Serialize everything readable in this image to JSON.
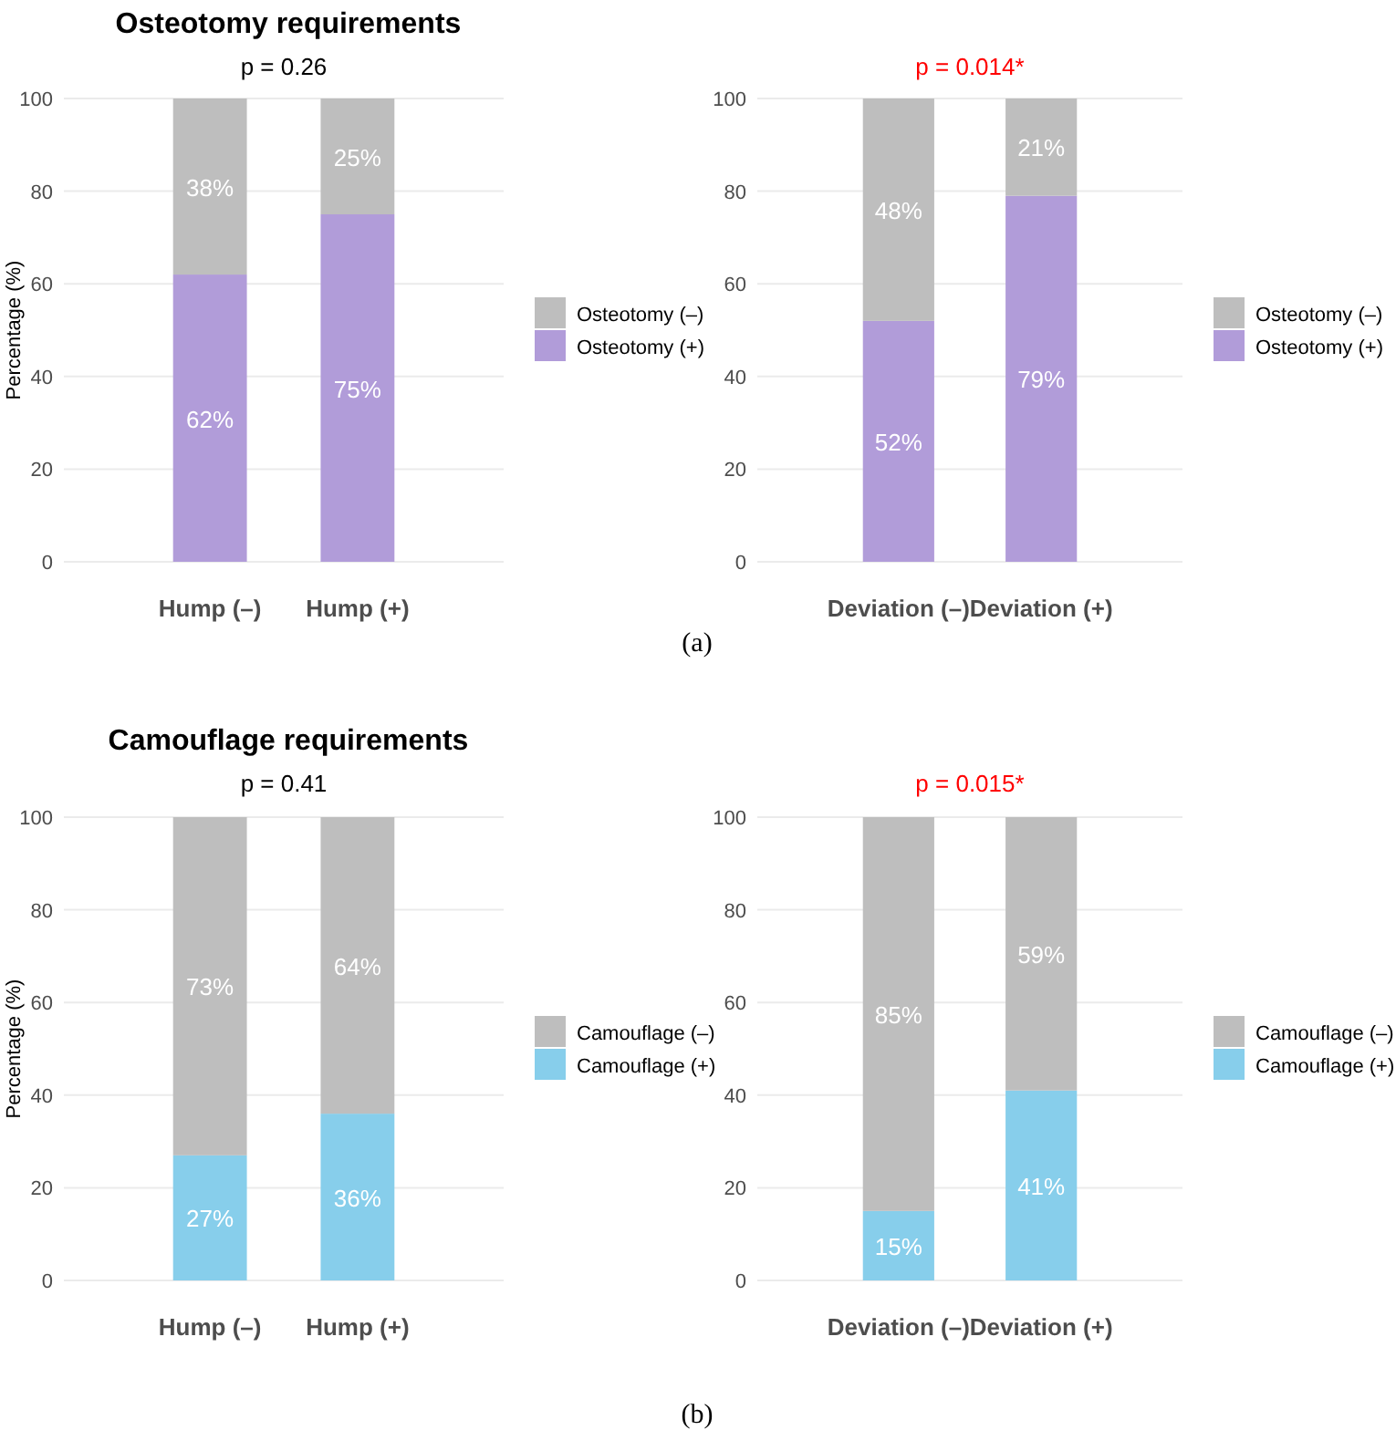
{
  "chart_data": [
    {
      "type": "bar",
      "title": "Osteotomy requirements",
      "subtitle": "p = 0.26",
      "ylabel": "Percentage (%)",
      "annotations": [
        "(a)"
      ],
      "categories": [
        "Hump (–)",
        "Hump (+)"
      ],
      "stacked": true,
      "ylim": [
        0,
        100
      ],
      "yticks": [
        0,
        20,
        40,
        60,
        80,
        100
      ],
      "grid": "y",
      "legend": "right",
      "series": [
        {
          "name": "Osteotomy (+)",
          "color": "#b19cd9",
          "values": [
            62,
            75
          ],
          "value_labels": [
            "62%",
            "75%"
          ]
        },
        {
          "name": "Osteotomy (–)",
          "color": "#bebebe",
          "values": [
            38,
            25
          ],
          "value_labels": [
            "38%",
            "25%"
          ]
        }
      ]
    },
    {
      "type": "bar",
      "subtitle": "p = 0.014*",
      "categories": [
        "Deviation (–)",
        "Deviation (+)"
      ],
      "stacked": true,
      "ylim": [
        0,
        100
      ],
      "yticks": [
        0,
        20,
        40,
        60,
        80,
        100
      ],
      "grid": "y",
      "legend": "right",
      "series": [
        {
          "name": "Osteotomy (+)",
          "color": "#b19cd9",
          "values": [
            52,
            79
          ],
          "value_labels": [
            "52%",
            "79%"
          ]
        },
        {
          "name": "Osteotomy (–)",
          "color": "#bebebe",
          "values": [
            48,
            21
          ],
          "value_labels": [
            "48%",
            "21%"
          ]
        }
      ]
    },
    {
      "type": "bar",
      "title": "Camouflage requirements",
      "subtitle": "p = 0.41",
      "ylabel": "Percentage (%)",
      "annotations": [
        "(b)"
      ],
      "categories": [
        "Hump (–)",
        "Hump (+)"
      ],
      "stacked": true,
      "ylim": [
        0,
        100
      ],
      "yticks": [
        0,
        20,
        40,
        60,
        80,
        100
      ],
      "grid": "y",
      "legend": "right",
      "series": [
        {
          "name": "Camouflage (+)",
          "color": "#87ceeb",
          "values": [
            27,
            36
          ],
          "value_labels": [
            "27%",
            "36%"
          ]
        },
        {
          "name": "Camouflage (–)",
          "color": "#bebebe",
          "values": [
            73,
            64
          ],
          "value_labels": [
            "73%",
            "64%"
          ]
        }
      ]
    },
    {
      "type": "bar",
      "subtitle": "p = 0.015*",
      "categories": [
        "Deviation (–)",
        "Deviation (+)"
      ],
      "stacked": true,
      "ylim": [
        0,
        100
      ],
      "yticks": [
        0,
        20,
        40,
        60,
        80,
        100
      ],
      "grid": "y",
      "legend": "right",
      "series": [
        {
          "name": "Camouflage (+)",
          "color": "#87ceeb",
          "values": [
            15,
            41
          ],
          "value_labels": [
            "15%",
            "41%"
          ]
        },
        {
          "name": "Camouflage (–)",
          "color": "#bebebe",
          "values": [
            85,
            59
          ],
          "value_labels": [
            "85%",
            "59%"
          ]
        }
      ]
    }
  ]
}
